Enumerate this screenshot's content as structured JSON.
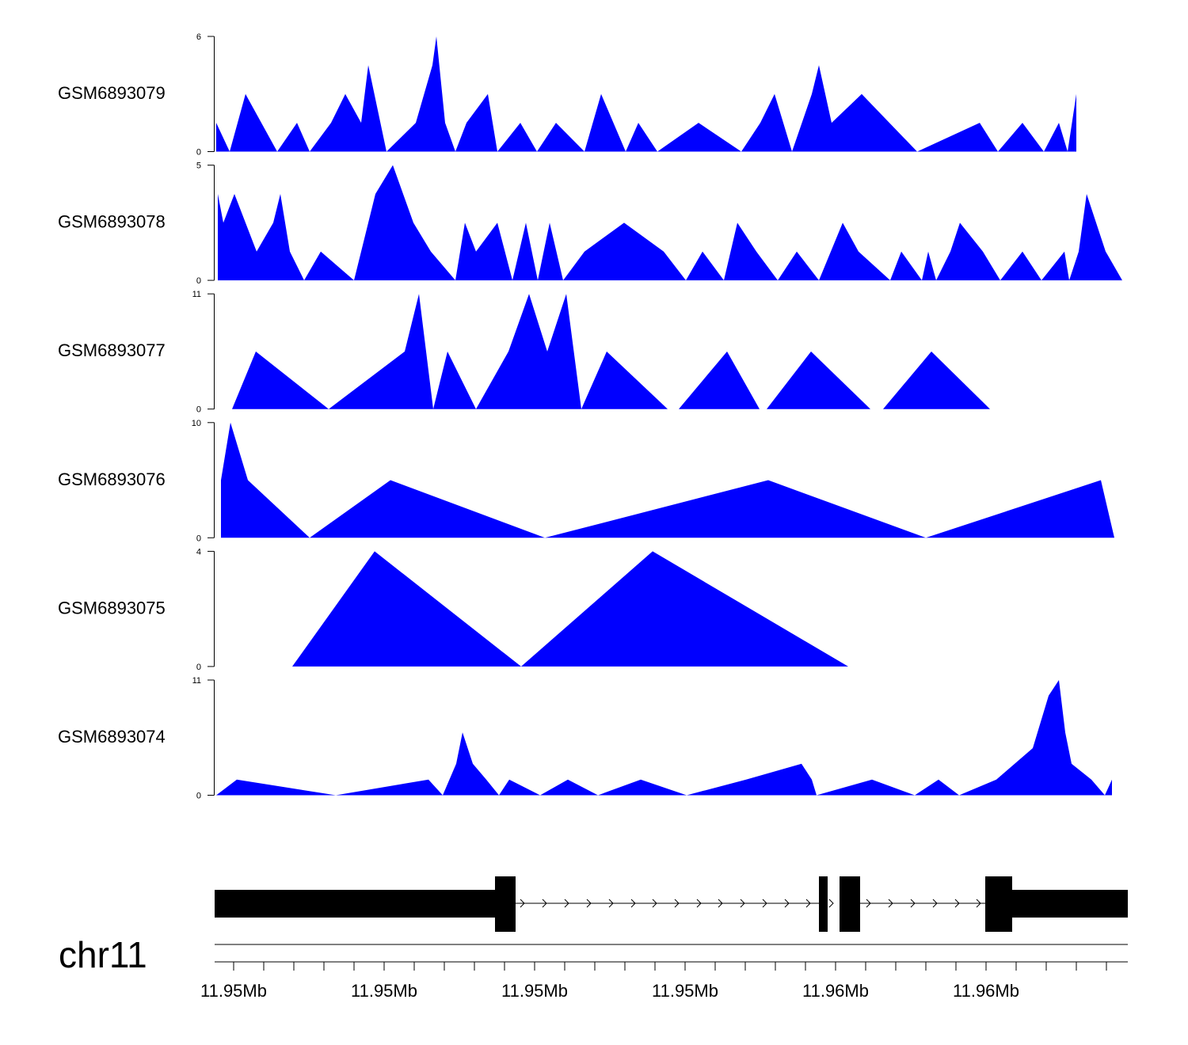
{
  "chart_data": {
    "type": "area",
    "chromosome": "chr11",
    "fill_color": "#0000ff",
    "gene_color": "#000000",
    "x_tick_labels": [
      "11.95Mb",
      "11.95Mb",
      "11.95Mb",
      "11.95Mb",
      "11.96Mb",
      "11.96Mb"
    ],
    "tracks": [
      {
        "name": "GSM6893079",
        "ymax": 6,
        "x": [
          0,
          1.7,
          3.7,
          7.7,
          10.2,
          11.8,
          14.5,
          16.3,
          18.3,
          19.2,
          21.5,
          25.2,
          27.3,
          27.8,
          28.9,
          30.2,
          31.6,
          34.3,
          35.5,
          38.4,
          40.5,
          42.9,
          46.5,
          48.6,
          51.7,
          53.3,
          55.7,
          60.9,
          66.3,
          68.7,
          70.5,
          72.7,
          75.2,
          76.1,
          77.7,
          81.5,
          88.5,
          96.4,
          98.7,
          101.8,
          104.5,
          106.4,
          107.5,
          108.6
        ],
        "y": [
          1.5,
          0,
          3,
          0,
          1.5,
          0,
          1.5,
          3,
          1.5,
          4.5,
          0,
          1.5,
          4.5,
          6,
          1.5,
          0,
          1.5,
          3,
          0,
          1.5,
          0,
          1.5,
          0,
          3,
          0,
          1.5,
          0,
          1.5,
          0,
          1.5,
          3,
          0,
          3,
          4.5,
          1.5,
          3,
          0,
          1.5,
          0,
          1.5,
          0,
          1.5,
          0,
          3
        ]
      },
      {
        "name": "GSM6893078",
        "ymax": 5,
        "x": [
          0.2,
          0.9,
          2.3,
          5.1,
          7.2,
          8.1,
          9.3,
          11.1,
          13.2,
          17.4,
          20.1,
          22.3,
          24.9,
          27.1,
          30.2,
          31.4,
          32.8,
          35.5,
          37.4,
          39.1,
          40.6,
          42.1,
          43.8,
          46.5,
          51.5,
          56.5,
          59.3,
          61.4,
          64.1,
          65.8,
          68.2,
          70.9,
          73.3,
          76.1,
          77.6,
          79.1,
          81.1,
          85.1,
          86.5,
          89.1,
          89.9,
          90.9,
          92.7,
          93.9,
          96.8,
          99,
          101.8,
          104.2,
          107.1,
          107.7,
          108.9,
          109.9,
          112.3,
          114.4
        ],
        "y": [
          3.75,
          2.5,
          3.75,
          1.25,
          2.5,
          3.75,
          1.25,
          0,
          1.25,
          0,
          3.75,
          5,
          2.5,
          1.25,
          0,
          2.5,
          1.25,
          2.5,
          0,
          2.5,
          0,
          2.5,
          0,
          1.25,
          2.5,
          1.25,
          0,
          1.25,
          0,
          2.5,
          1.25,
          0,
          1.25,
          0,
          1.25,
          2.5,
          1.25,
          0,
          1.25,
          0,
          1.25,
          0,
          1.25,
          2.5,
          1.25,
          0,
          1.25,
          0,
          1.25,
          0,
          1.25,
          3.75,
          1.25,
          0
        ]
      },
      {
        "name": "GSM6893077",
        "ymax": 11,
        "x": [
          2,
          5,
          14.2,
          23.8,
          25.6,
          27.4,
          29.2,
          32.8,
          36.9,
          39.5,
          41.8,
          44.2,
          46.1,
          49.3,
          57,
          58.4,
          64.5,
          68.6,
          69.5,
          75.1,
          82.6,
          84.2,
          90.3,
          97.7
        ],
        "y": [
          0,
          5.5,
          0,
          5.5,
          11,
          0,
          5.5,
          0,
          5.5,
          11,
          5.5,
          11,
          0,
          5.5,
          0,
          0,
          5.5,
          0,
          0,
          5.5,
          0,
          0,
          5.5,
          0
        ]
      },
      {
        "name": "GSM6893076",
        "ymax": 10,
        "x": [
          0.6,
          1.8,
          4,
          11.8,
          22,
          41.5,
          69.7,
          89.6,
          111.7,
          113.4
        ],
        "y": [
          5,
          10,
          5,
          0,
          5,
          0,
          5,
          0,
          5,
          0
        ]
      },
      {
        "name": "GSM6893075",
        "ymax": 4,
        "x": [
          9.6,
          20,
          38.5,
          55.1,
          79.8
        ],
        "y": [
          0,
          4,
          0,
          4,
          0
        ]
      },
      {
        "name": "GSM6893074",
        "ymax": 11,
        "x": [
          0,
          2.6,
          15.1,
          26.8,
          28.6,
          30.3,
          31.1,
          32.4,
          34.1,
          35.7,
          37,
          40.9,
          44.4,
          48.2,
          53.6,
          59.4,
          66.9,
          73.9,
          75.2,
          75.8,
          82.8,
          88.2,
          91.2,
          93.8,
          98.5,
          103.1,
          105.1,
          106.4,
          107.2,
          108,
          110.5,
          112.2,
          113.1
        ],
        "y": [
          0,
          1.5,
          0,
          1.5,
          0,
          3,
          6,
          3,
          1.5,
          0,
          1.5,
          0,
          1.5,
          0,
          1.5,
          0,
          1.5,
          3,
          1.5,
          0,
          1.5,
          0,
          1.5,
          0,
          1.5,
          4.5,
          9.5,
          11,
          6,
          3,
          1.5,
          0,
          1.5
        ]
      }
    ]
  }
}
